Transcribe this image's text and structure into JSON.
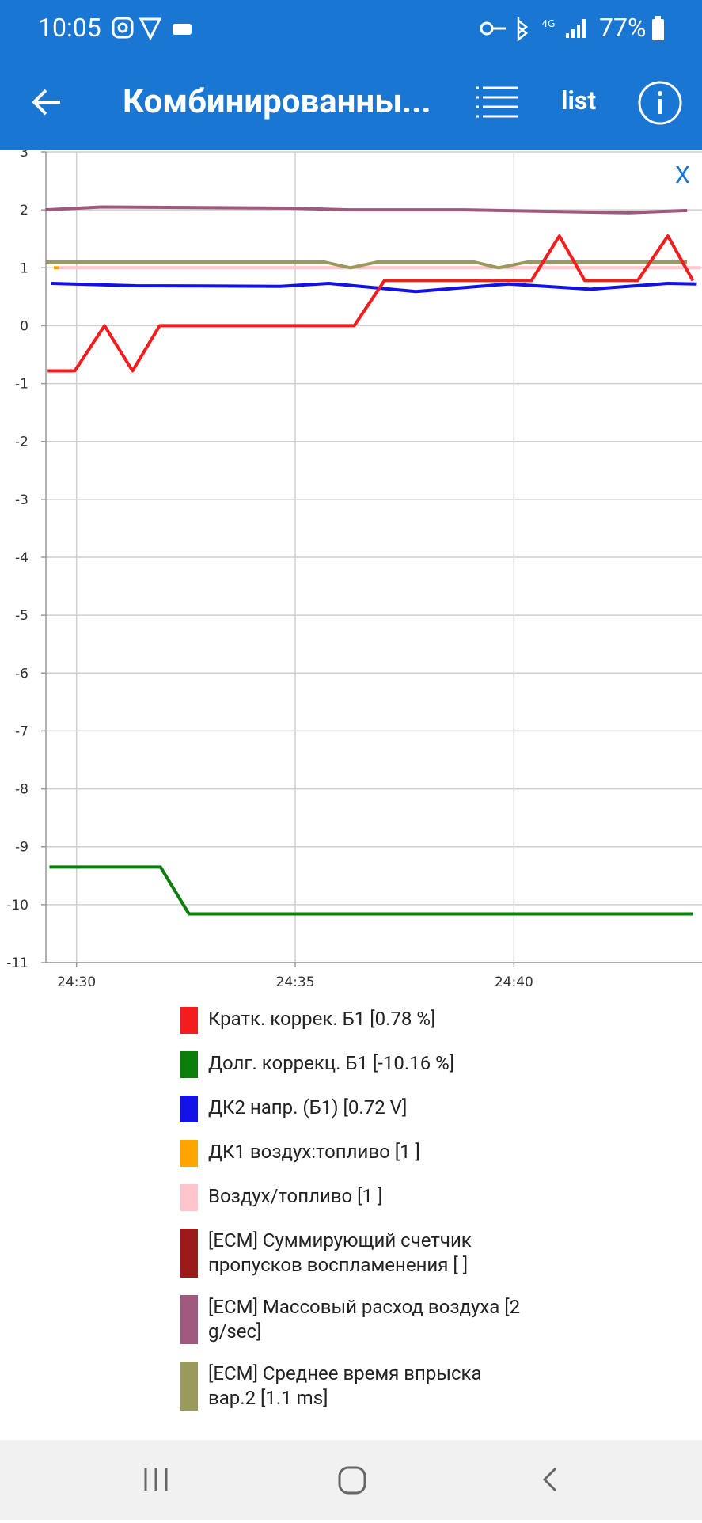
{
  "status_bar": {
    "time": "10:05",
    "battery": "77%"
  },
  "app_bar": {
    "title": "Комбинированны...",
    "list_button": "list"
  },
  "chart_data": {
    "type": "line",
    "close_button": "X",
    "xlim": [
      1469.3,
      1484.3
    ],
    "xticks": [
      {
        "value": 1470,
        "label": "24:30"
      },
      {
        "value": 1475,
        "label": "24:35"
      },
      {
        "value": 1480,
        "label": "24:40"
      }
    ],
    "ylim": [
      -11,
      3
    ],
    "yticks": [
      -11,
      -10,
      -9,
      -8,
      -7,
      -6,
      -5,
      -4,
      -3,
      -2,
      -1,
      0,
      1,
      2,
      3
    ],
    "grid": true,
    "series": [
      {
        "name": "Кратк. коррек. Б1 [0.78 %]",
        "color": "#f41c1c",
        "x": [
          1469.34,
          1469.96,
          1470.64,
          1471.28,
          1471.9,
          1476.35,
          1477.04,
          1480.4,
          1481.04,
          1481.62,
          1482.83,
          1483.52,
          1484.09
        ],
        "values": [
          -0.78,
          -0.78,
          0,
          -0.78,
          0,
          0,
          0.78,
          0.78,
          1.55,
          0.78,
          0.78,
          1.55,
          0.78
        ]
      },
      {
        "name": "Долг. коррекц. Б1 [-10.16 %]",
        "color": "#0b7d0b",
        "x": [
          1469.38,
          1471.92,
          1472.57,
          1484.09
        ],
        "values": [
          -9.35,
          -9.35,
          -10.16,
          -10.16
        ]
      },
      {
        "name": "ДК2 напр. (Б1) [0.72 V]",
        "color": "#1212e6",
        "x": [
          1469.42,
          1471.35,
          1474.67,
          1475.77,
          1477.76,
          1479.87,
          1481.75,
          1483.52,
          1484.18
        ],
        "values": [
          0.73,
          0.69,
          0.68,
          0.73,
          0.59,
          0.72,
          0.63,
          0.73,
          0.72
        ]
      },
      {
        "name": "ДК1 воздух:топливо [1 ]",
        "color": "#ffa500",
        "x": [
          1469.48,
          1469.6
        ],
        "values": [
          1,
          1
        ]
      },
      {
        "name": "Воздух/топливо [1 ]",
        "color": "#ffc4cc",
        "x": [
          1469.6,
          1484.27
        ],
        "values": [
          1,
          1
        ]
      },
      {
        "name": "[ECM] Суммирующий счетчик пропусков воспламенения [ ]",
        "color": "#9b1b1b",
        "x": [],
        "values": []
      },
      {
        "name": "[ECM] Массовый расход воздуха [2 g/sec]",
        "color": "#9e5a7e",
        "x": [
          1469.29,
          1470.58,
          1474.89,
          1476.22,
          1478.87,
          1482.63,
          1483.96
        ],
        "values": [
          2.0,
          2.05,
          2.03,
          2.0,
          2.0,
          1.95,
          1.99
        ]
      },
      {
        "name": "[ECM] Среднее время впрыска вар.2 [1.1 ms]",
        "color": "#9a9a5c",
        "x": [
          1469.29,
          1475.66,
          1476.26,
          1476.88,
          1479.09,
          1479.65,
          1480.31,
          1483.96
        ],
        "values": [
          1.1,
          1.1,
          1.0,
          1.1,
          1.1,
          1.0,
          1.1,
          1.1
        ]
      }
    ]
  }
}
